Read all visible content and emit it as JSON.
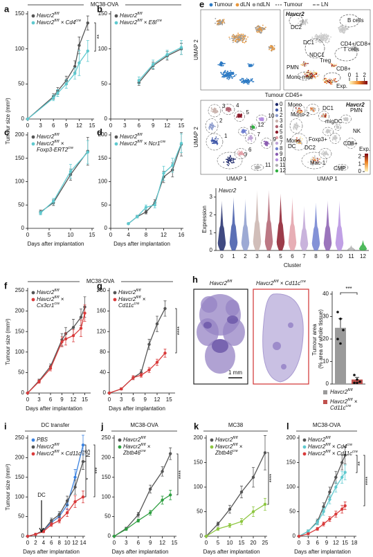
{
  "group_titles": [
    "MC38-OVA",
    "MC38-OVA"
  ],
  "chart_data": [
    {
      "panel": "a",
      "type": "line",
      "y_label": "Tumour size (mm³)",
      "xlim": [
        0,
        15
      ],
      "xticks": [
        0,
        3,
        6,
        9,
        12,
        15
      ],
      "ylim": [
        0,
        150
      ],
      "yticks": [
        0,
        50,
        100,
        150
      ],
      "x": [
        0,
        6,
        7,
        9,
        11,
        12,
        14
      ],
      "series": [
        {
          "name": "Havcr2fl/fl",
          "color": "#555555",
          "values": [
            0,
            32,
            40,
            55,
            75,
            105,
            137
          ],
          "errors": [
            0,
            4,
            5,
            6,
            8,
            12,
            10
          ]
        },
        {
          "name": "Havcr2fl/fl × Cd4cre",
          "color": "#5fc9cf",
          "values": [
            0,
            30,
            37,
            50,
            65,
            80,
            97
          ],
          "errors": [
            0,
            4,
            5,
            6,
            8,
            18,
            15
          ]
        }
      ],
      "annotations": [
        "**"
      ]
    },
    {
      "panel": "b",
      "type": "line",
      "xlim": [
        0,
        15
      ],
      "xticks": [
        0,
        3,
        6,
        9,
        12,
        15
      ],
      "ylim": [
        0,
        150
      ],
      "yticks": [
        0,
        50,
        100,
        150
      ],
      "x": [
        6,
        9,
        12,
        15
      ],
      "series": [
        {
          "name": "Havcr2fl/fl",
          "color": "#555555",
          "values": [
            52,
            76,
            90,
            100
          ],
          "errors": [
            4,
            5,
            6,
            8
          ]
        },
        {
          "name": "Havcr2fl/fl × E8icre",
          "color": "#5fc9cf",
          "values": [
            55,
            78,
            92,
            102
          ],
          "errors": [
            5,
            6,
            6,
            10
          ]
        }
      ],
      "annotations": []
    },
    {
      "panel": "c",
      "type": "line",
      "x_label": "Days after implantation",
      "xlim": [
        0,
        15
      ],
      "xticks": [
        0,
        5,
        10,
        15
      ],
      "ylim": [
        0,
        200
      ],
      "yticks": [
        0,
        50,
        100,
        150,
        200
      ],
      "x": [
        3,
        6,
        10,
        14
      ],
      "series": [
        {
          "name": "Havcr2fl/fl",
          "color": "#555555",
          "values": [
            35,
            55,
            115,
            165
          ],
          "errors": [
            4,
            6,
            12,
            30
          ]
        },
        {
          "name": "Havcr2fl/fl × Foxp3-ERT2cre",
          "color": "#5fc9cf",
          "values": [
            33,
            58,
            122,
            163
          ],
          "errors": [
            4,
            6,
            15,
            25
          ]
        }
      ],
      "annotations": []
    },
    {
      "panel": "d",
      "type": "line",
      "x_label": "Days after implantation",
      "xlim": [
        0,
        16
      ],
      "xticks": [
        0,
        4,
        8,
        12,
        16
      ],
      "ylim": [
        0,
        200
      ],
      "yticks": [
        0,
        50,
        100,
        150,
        200
      ],
      "x": [
        4,
        6,
        8,
        10,
        12,
        14,
        16
      ],
      "series": [
        {
          "name": "Havcr2fl/fl",
          "color": "#555555",
          "values": [
            10,
            25,
            35,
            55,
            110,
            125,
            180
          ],
          "errors": [
            2,
            3,
            4,
            6,
            12,
            15,
            25
          ]
        },
        {
          "name": "Havcr2fl/fl × Ncr1cre",
          "color": "#5fc9cf",
          "values": [
            10,
            25,
            45,
            50,
            118,
            135,
            182
          ],
          "errors": [
            2,
            3,
            5,
            6,
            15,
            15,
            20
          ]
        }
      ],
      "annotations": []
    },
    {
      "panel": "f",
      "type": "line",
      "y_label": "Tumour size (mm³)",
      "x_label": "Days after implantation",
      "xlim": [
        0,
        16
      ],
      "xticks": [
        0,
        3,
        6,
        9,
        12,
        15
      ],
      "ylim": [
        0,
        250
      ],
      "yticks": [
        0,
        50,
        100,
        150,
        200,
        250
      ],
      "x": [
        0,
        3,
        6,
        9,
        10,
        12,
        14,
        15
      ],
      "series": [
        {
          "name": "Havcr2fl/fl",
          "color": "#555555",
          "values": [
            0,
            30,
            65,
            130,
            145,
            160,
            185,
            210
          ],
          "errors": [
            0,
            4,
            6,
            15,
            15,
            20,
            20,
            25
          ]
        },
        {
          "name": "Havcr2fl/fl × Cx3cr1cre",
          "color": "#d93b3b",
          "values": [
            0,
            28,
            60,
            125,
            132,
            140,
            158,
            195
          ],
          "errors": [
            0,
            4,
            6,
            12,
            15,
            15,
            20,
            20
          ]
        }
      ],
      "annotations": []
    },
    {
      "panel": "g",
      "type": "line",
      "x_label": "Days after implantation",
      "xlim": [
        0,
        16
      ],
      "xticks": [
        0,
        3,
        6,
        9,
        12,
        15
      ],
      "ylim": [
        0,
        200
      ],
      "yticks": [
        0,
        40,
        80,
        120,
        160,
        200
      ],
      "x": [
        0,
        3,
        6,
        8,
        10,
        12,
        14
      ],
      "series": [
        {
          "name": "Havcr2fl/fl",
          "color": "#555555",
          "values": [
            0,
            8,
            30,
            40,
            95,
            135,
            165
          ],
          "errors": [
            0,
            2,
            4,
            5,
            10,
            15,
            15
          ]
        },
        {
          "name": "Havcr2fl/fl × Cd11ccre",
          "color": "#d93b3b",
          "values": [
            0,
            8,
            30,
            35,
            45,
            60,
            78
          ],
          "errors": [
            0,
            2,
            4,
            4,
            5,
            6,
            8
          ]
        }
      ],
      "annotations": [
        "****"
      ]
    },
    {
      "panel": "i",
      "type": "line",
      "title": "DC transfer",
      "y_label": "Tumour size (mm³)",
      "x_label": "Days after implantation",
      "xlim": [
        0,
        14
      ],
      "xticks": [
        0,
        2,
        4,
        6,
        8,
        10,
        12,
        14
      ],
      "ylim": [
        0,
        250
      ],
      "yticks": [
        0,
        50,
        100,
        150,
        200,
        250
      ],
      "x": [
        0,
        2,
        4,
        6,
        8,
        10,
        12,
        14
      ],
      "series": [
        {
          "name": "PBS",
          "color": "#3b82e0",
          "values": [
            0,
            5,
            15,
            35,
            50,
            80,
            150,
            232
          ],
          "errors": [
            0,
            2,
            4,
            6,
            8,
            12,
            20,
            25
          ]
        },
        {
          "name": "Havcr2fl/fl",
          "color": "#555555",
          "values": [
            0,
            5,
            15,
            40,
            55,
            90,
            125,
            190
          ],
          "errors": [
            0,
            2,
            4,
            6,
            8,
            12,
            18,
            20
          ]
        },
        {
          "name": "Havcr2fl/fl × Cd11ccre",
          "color": "#d93b3b",
          "values": [
            0,
            5,
            12,
            30,
            40,
            60,
            88,
            100
          ],
          "errors": [
            0,
            2,
            3,
            5,
            6,
            10,
            15,
            15
          ]
        }
      ],
      "annotations": [
        "NS",
        "*",
        "***",
        "DC"
      ]
    },
    {
      "panel": "j",
      "type": "line",
      "title": "MC38-OVA",
      "x_label": "Days after implantation",
      "xlim": [
        0,
        15
      ],
      "xticks": [
        0,
        3,
        6,
        9,
        12,
        15
      ],
      "ylim": [
        0,
        250
      ],
      "yticks": [
        0,
        50,
        100,
        150,
        200,
        250
      ],
      "x": [
        0,
        3,
        6,
        9,
        12,
        14
      ],
      "series": [
        {
          "name": "Havcr2fl/fl",
          "color": "#555555",
          "values": [
            0,
            20,
            55,
            120,
            165,
            210
          ],
          "errors": [
            0,
            3,
            6,
            10,
            12,
            15
          ]
        },
        {
          "name": "Havcr2fl/fl × Zbtb46cre",
          "color": "#2f9e41",
          "values": [
            0,
            18,
            40,
            60,
            92,
            105
          ],
          "errors": [
            0,
            3,
            4,
            6,
            10,
            12
          ]
        }
      ],
      "annotations": [
        "****"
      ]
    },
    {
      "panel": "k",
      "type": "line",
      "title": "MC38",
      "x_label": "Days after implantation",
      "xlim": [
        0,
        25
      ],
      "xticks": [
        0,
        5,
        10,
        15,
        20,
        25
      ],
      "ylim": [
        0,
        200
      ],
      "yticks": [
        0,
        50,
        100,
        150,
        200
      ],
      "x": [
        0,
        5,
        10,
        15,
        20,
        25
      ],
      "series": [
        {
          "name": "Havcr2fl/fl",
          "color": "#555555",
          "values": [
            0,
            25,
            55,
            90,
            120,
            170
          ],
          "errors": [
            0,
            4,
            8,
            12,
            20,
            35
          ]
        },
        {
          "name": "Havcr2fl/fl × Zbtb46cre",
          "color": "#8dc63f",
          "values": [
            0,
            15,
            22,
            30,
            50,
            65
          ],
          "errors": [
            0,
            3,
            4,
            6,
            10,
            12
          ]
        }
      ],
      "annotations": [
        "****"
      ]
    },
    {
      "panel": "l",
      "type": "line",
      "title": "MC38-OVA",
      "x_label": "Days after implantation",
      "xlim": [
        0,
        18
      ],
      "xticks": [
        0,
        3,
        6,
        9,
        12,
        15,
        18
      ],
      "ylim": [
        0,
        200
      ],
      "yticks": [
        0,
        50,
        100,
        150,
        200
      ],
      "x": [
        0,
        3,
        6,
        8,
        10,
        12,
        14,
        15
      ],
      "series": [
        {
          "name": "Havcr2fl/fl",
          "color": "#555555",
          "values": [
            0,
            10,
            30,
            60,
            90,
            120,
            150,
            165
          ],
          "errors": [
            0,
            3,
            5,
            8,
            10,
            12,
            15,
            18
          ]
        },
        {
          "name": "Havcr2fl/fl × Cd4cre",
          "color": "#5fc9cf",
          "values": [
            0,
            10,
            28,
            50,
            75,
            100,
            120,
            130
          ],
          "errors": [
            0,
            3,
            5,
            7,
            9,
            10,
            12,
            15
          ]
        },
        {
          "name": "Havcr2fl/fl × Cd11ccre",
          "color": "#d93b3b",
          "values": [
            0,
            5,
            15,
            25,
            35,
            45,
            55,
            62
          ],
          "errors": [
            0,
            2,
            3,
            4,
            5,
            6,
            8,
            8
          ]
        }
      ],
      "annotations": [
        "**",
        "****"
      ]
    },
    {
      "panel": "h",
      "type": "bar",
      "image_titles": [
        "Havcr2fl/fl",
        "Havcr2fl/fl × Cd11ccre"
      ],
      "scale_bar": "1 mm",
      "y_label": "Tumour area (% area of whole tissue)",
      "ylim": [
        0,
        40
      ],
      "yticks": [
        0,
        10,
        20,
        30,
        40
      ],
      "categories": [
        "Havcr2fl/fl",
        "Havcr2fl/fl × Cd11ccre"
      ],
      "colors": [
        "#9a9a9a",
        "#c0504d"
      ],
      "values": [
        25,
        2
      ],
      "errors": [
        4,
        1
      ],
      "points": [
        [
          32,
          29,
          24,
          20,
          18
        ],
        [
          4,
          2,
          1,
          0.5,
          0.5
        ]
      ],
      "annotations": [
        "***"
      ]
    },
    {
      "type": "violin",
      "title": "Havcr2",
      "x_label": "Cluster",
      "y_label": "Expression",
      "ylim": [
        0,
        3.5
      ],
      "yticks": [
        0,
        1,
        2,
        3
      ],
      "categories": [
        "0",
        "1",
        "2",
        "3",
        "4",
        "5",
        "6",
        "7",
        "8",
        "9",
        "10",
        "11",
        "12"
      ],
      "colors": [
        "#1f2a6b",
        "#3f57a8",
        "#8c9bcc",
        "#c9b3ad",
        "#b0606e",
        "#8b1a2a",
        "#e3a0a8",
        "#c0a6d6",
        "#6f7fd0",
        "#8a5db0",
        "#b58fe0",
        "#b0b0b0",
        "#2fae3f"
      ],
      "values": [
        2.8,
        3.0,
        2.9,
        3.4,
        3.4,
        3.2,
        3.0,
        2.5,
        2.7,
        2.8,
        2.8,
        0.3,
        0.6
      ]
    }
  ],
  "umap": {
    "panel": "e",
    "axis_x": "UMAP 1",
    "axis_y": "UMAP 2",
    "groups": [
      {
        "name": "Tumour",
        "color": "#2e7bc4"
      },
      {
        "name": "dLN",
        "color": "#e8963a"
      },
      {
        "name": "ndLN",
        "color": "#9a9a9a"
      }
    ],
    "outlines": [
      "Tumour",
      "LN"
    ],
    "gene": "Havcr2",
    "top_labels": [
      "B cells",
      "DC2",
      "DC1",
      "CD4+/CD8+",
      "T cells",
      "NDC1",
      "Treg",
      "PMN",
      "CD8+",
      "Mono-mac"
    ],
    "subtitle": "Tumour CD45+",
    "bottom_labels": [
      "Mono",
      "Mono-2",
      "DC1",
      "PMN",
      "migDC",
      "NK",
      "Foxp3+",
      "CD8+",
      "Mono",
      "DC",
      "DC2",
      "Mac-1",
      "CMP"
    ],
    "colorbar_label": "Exp.",
    "colorbar_lim": [
      0,
      2.4
    ],
    "colorbar_ticks": [
      0,
      1,
      2
    ]
  }
}
